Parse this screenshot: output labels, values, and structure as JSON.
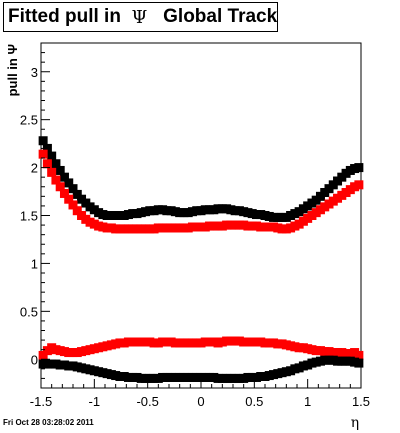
{
  "title": {
    "prefix": "Fitted pull in",
    "symbol": "Ψ",
    "suffix": "Global Tracks"
  },
  "footer": {
    "date": "Fri Oct 28 03:28:02 2011"
  },
  "chart_data": {
    "type": "scatter",
    "title": "Fitted pull in Ψ   Global Tracks",
    "xlabel": "η",
    "ylabel": "pull in Ψ",
    "xlim": [
      -1.5,
      1.5
    ],
    "ylim": [
      -0.3,
      3.3
    ],
    "x_ticks": [
      -1.5,
      -1,
      -0.5,
      0,
      0.5,
      1,
      1.5
    ],
    "x_tick_labels": [
      "-1.5",
      "-1",
      "-0.5",
      "0",
      "0.5",
      "1",
      "1.5"
    ],
    "y_ticks": [
      0,
      0.5,
      1,
      1.5,
      2,
      2.5,
      3
    ],
    "y_tick_labels": [
      "0",
      "0.5",
      "1",
      "1.5",
      "2",
      "2.5",
      "3"
    ],
    "grid": false,
    "legend": "none",
    "x": [
      -1.48,
      -1.44,
      -1.4,
      -1.36,
      -1.32,
      -1.28,
      -1.24,
      -1.2,
      -1.16,
      -1.12,
      -1.08,
      -1.04,
      -1.0,
      -0.96,
      -0.92,
      -0.88,
      -0.84,
      -0.8,
      -0.76,
      -0.72,
      -0.68,
      -0.64,
      -0.6,
      -0.56,
      -0.52,
      -0.48,
      -0.44,
      -0.4,
      -0.36,
      -0.32,
      -0.28,
      -0.24,
      -0.2,
      -0.16,
      -0.12,
      -0.08,
      -0.04,
      0.0,
      0.04,
      0.08,
      0.12,
      0.16,
      0.2,
      0.24,
      0.28,
      0.32,
      0.36,
      0.4,
      0.44,
      0.48,
      0.52,
      0.56,
      0.6,
      0.64,
      0.68,
      0.72,
      0.76,
      0.8,
      0.84,
      0.88,
      0.92,
      0.96,
      1.0,
      1.04,
      1.08,
      1.12,
      1.16,
      1.2,
      1.24,
      1.28,
      1.32,
      1.36,
      1.4,
      1.44,
      1.48
    ],
    "series": [
      {
        "color": "#000000",
        "marker": "square",
        "values": [
          2.28,
          2.2,
          2.12,
          2.04,
          1.97,
          1.9,
          1.84,
          1.78,
          1.72,
          1.67,
          1.63,
          1.59,
          1.56,
          1.53,
          1.51,
          1.5,
          1.5,
          1.5,
          1.5,
          1.5,
          1.51,
          1.52,
          1.52,
          1.53,
          1.54,
          1.55,
          1.55,
          1.56,
          1.56,
          1.55,
          1.55,
          1.54,
          1.53,
          1.53,
          1.53,
          1.54,
          1.55,
          1.55,
          1.56,
          1.56,
          1.56,
          1.57,
          1.57,
          1.57,
          1.56,
          1.55,
          1.55,
          1.54,
          1.53,
          1.52,
          1.51,
          1.51,
          1.5,
          1.49,
          1.48,
          1.48,
          1.48,
          1.48,
          1.5,
          1.52,
          1.54,
          1.57,
          1.6,
          1.63,
          1.66,
          1.7,
          1.74,
          1.78,
          1.82,
          1.86,
          1.9,
          1.94,
          1.97,
          1.99,
          2.0
        ]
      },
      {
        "color": "#ff0000",
        "marker": "square",
        "values": [
          2.14,
          2.04,
          1.95,
          1.87,
          1.8,
          1.73,
          1.67,
          1.61,
          1.55,
          1.5,
          1.46,
          1.43,
          1.41,
          1.39,
          1.38,
          1.37,
          1.37,
          1.36,
          1.36,
          1.36,
          1.36,
          1.36,
          1.36,
          1.36,
          1.36,
          1.36,
          1.36,
          1.37,
          1.37,
          1.37,
          1.37,
          1.37,
          1.37,
          1.37,
          1.37,
          1.38,
          1.38,
          1.38,
          1.38,
          1.39,
          1.39,
          1.39,
          1.39,
          1.4,
          1.4,
          1.4,
          1.4,
          1.4,
          1.39,
          1.39,
          1.39,
          1.38,
          1.38,
          1.38,
          1.38,
          1.37,
          1.36,
          1.36,
          1.37,
          1.39,
          1.41,
          1.44,
          1.47,
          1.5,
          1.53,
          1.56,
          1.59,
          1.62,
          1.65,
          1.68,
          1.71,
          1.74,
          1.77,
          1.8,
          1.82
        ]
      },
      {
        "color": "#ff0000",
        "marker": "square",
        "values": [
          0.04,
          0.09,
          0.12,
          0.1,
          0.09,
          0.08,
          0.07,
          0.07,
          0.07,
          0.08,
          0.09,
          0.1,
          0.11,
          0.12,
          0.13,
          0.14,
          0.15,
          0.16,
          0.17,
          0.17,
          0.18,
          0.18,
          0.18,
          0.18,
          0.18,
          0.18,
          0.17,
          0.17,
          0.18,
          0.18,
          0.18,
          0.17,
          0.17,
          0.17,
          0.17,
          0.17,
          0.17,
          0.17,
          0.18,
          0.18,
          0.18,
          0.17,
          0.18,
          0.19,
          0.19,
          0.19,
          0.19,
          0.18,
          0.18,
          0.18,
          0.18,
          0.18,
          0.17,
          0.17,
          0.17,
          0.16,
          0.16,
          0.15,
          0.14,
          0.13,
          0.12,
          0.12,
          0.11,
          0.1,
          0.09,
          0.09,
          0.08,
          0.08,
          0.07,
          0.07,
          0.07,
          0.06,
          0.06,
          0.07,
          0.04
        ]
      },
      {
        "color": "#000000",
        "marker": "square",
        "values": [
          -0.05,
          -0.05,
          -0.05,
          -0.05,
          -0.06,
          -0.06,
          -0.07,
          -0.07,
          -0.08,
          -0.09,
          -0.1,
          -0.11,
          -0.12,
          -0.13,
          -0.14,
          -0.15,
          -0.16,
          -0.17,
          -0.18,
          -0.18,
          -0.19,
          -0.19,
          -0.19,
          -0.2,
          -0.2,
          -0.2,
          -0.2,
          -0.2,
          -0.19,
          -0.19,
          -0.19,
          -0.19,
          -0.19,
          -0.19,
          -0.19,
          -0.19,
          -0.19,
          -0.19,
          -0.19,
          -0.19,
          -0.19,
          -0.2,
          -0.2,
          -0.2,
          -0.2,
          -0.2,
          -0.2,
          -0.2,
          -0.19,
          -0.19,
          -0.19,
          -0.18,
          -0.18,
          -0.17,
          -0.16,
          -0.15,
          -0.14,
          -0.13,
          -0.12,
          -0.1,
          -0.09,
          -0.07,
          -0.06,
          -0.04,
          -0.03,
          -0.02,
          -0.01,
          -0.01,
          -0.01,
          -0.02,
          -0.02,
          -0.02,
          -0.02,
          -0.03,
          -0.04
        ]
      }
    ]
  }
}
